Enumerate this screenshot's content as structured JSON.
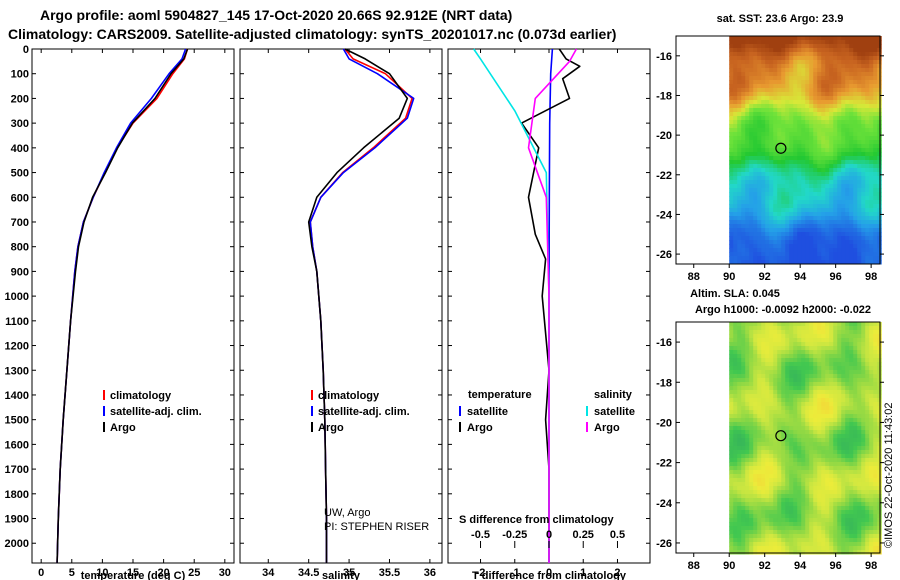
{
  "header": {
    "line1": "Argo profile: aoml 5904827_145 17-Oct-2020 20.66S 92.912E (NRT data)",
    "line2": "Climatology: CARS2009. Satellite-adjusted climatology: synTS_20201017.nc (0.073d earlier)"
  },
  "colors": {
    "climatology": "#ff0000",
    "satellite": "#0000ff",
    "argo": "#000000",
    "sal_satellite": "#00e5e5",
    "sal_argo": "#ff00ff"
  },
  "chart_data": [
    {
      "type": "line",
      "id": "temperature",
      "xlabel": "temperature (deg C)",
      "xlim": [
        -1.5,
        31.5
      ],
      "xticks": [
        "0",
        "5",
        "10",
        "15",
        "20",
        "25",
        "30"
      ],
      "xtick_values": [
        0,
        5,
        10,
        15,
        20,
        25,
        30
      ],
      "ylim": [
        2080,
        0
      ],
      "yticks": [
        "0",
        "100",
        "200",
        "300",
        "400",
        "500",
        "600",
        "700",
        "800",
        "900",
        "1000",
        "1100",
        "1200",
        "1300",
        "1400",
        "1500",
        "1600",
        "1700",
        "1800",
        "1900",
        "2000"
      ],
      "ytick_values": [
        0,
        100,
        200,
        300,
        400,
        500,
        600,
        700,
        800,
        900,
        1000,
        1100,
        1200,
        1300,
        1400,
        1500,
        1600,
        1700,
        1800,
        1900,
        2000
      ],
      "legend": [
        "climatology",
        "satellite-adj. clim.",
        "Argo"
      ],
      "series": [
        {
          "name": "climatology",
          "color": "#ff0000",
          "x": [
            23.9,
            23.4,
            21.5,
            18.9,
            15.0,
            12.4,
            10.4,
            8.5,
            6.9,
            6.0,
            5.5,
            4.8,
            4.2,
            3.6,
            3.1,
            2.8,
            2.6
          ],
          "y": [
            0,
            40,
            100,
            200,
            300,
            400,
            500,
            600,
            700,
            800,
            900,
            1100,
            1300,
            1500,
            1700,
            1900,
            2080
          ]
        },
        {
          "name": "satellite-adj. clim.",
          "color": "#0000ff",
          "x": [
            23.6,
            23.0,
            20.9,
            18.0,
            14.6,
            12.3,
            10.3,
            8.5,
            6.9,
            6.0,
            5.5,
            4.8,
            4.2,
            3.6,
            3.1,
            2.8,
            2.6
          ],
          "y": [
            0,
            40,
            100,
            200,
            300,
            400,
            500,
            600,
            700,
            800,
            900,
            1100,
            1300,
            1500,
            1700,
            1900,
            2080
          ]
        },
        {
          "name": "Argo",
          "color": "#000000",
          "x": [
            23.9,
            23.3,
            21.2,
            18.6,
            14.9,
            12.5,
            10.5,
            8.4,
            7.0,
            6.1,
            5.6,
            4.8,
            4.2,
            3.6,
            3.1,
            2.8,
            2.6
          ],
          "y": [
            0,
            40,
            100,
            200,
            300,
            400,
            500,
            600,
            700,
            800,
            900,
            1100,
            1300,
            1500,
            1700,
            1900,
            2080
          ]
        }
      ]
    },
    {
      "type": "line",
      "id": "salinity",
      "xlabel": "salinity",
      "xlim": [
        33.65,
        36.15
      ],
      "xticks": [
        "34",
        "34.5",
        "35",
        "35.5",
        "36"
      ],
      "xtick_values": [
        34,
        34.5,
        35,
        35.5,
        36
      ],
      "ylim": [
        2080,
        0
      ],
      "legend": [
        "climatology",
        "satellite-adj. clim.",
        "Argo"
      ],
      "annotation": [
        "UW, Argo",
        "PI: STEPHEN RISER"
      ],
      "series": [
        {
          "name": "climatology",
          "color": "#ff0000",
          "x": [
            34.95,
            35.05,
            35.45,
            35.78,
            35.7,
            35.3,
            34.92,
            34.65,
            34.52,
            34.55,
            34.6,
            34.65,
            34.68,
            34.7,
            34.71,
            34.72,
            34.72
          ],
          "y": [
            0,
            40,
            100,
            200,
            280,
            400,
            500,
            600,
            700,
            800,
            900,
            1100,
            1300,
            1500,
            1700,
            1900,
            2080
          ]
        },
        {
          "name": "satellite-adj. clim.",
          "color": "#0000ff",
          "x": [
            34.93,
            35.0,
            35.35,
            35.8,
            35.72,
            35.32,
            34.93,
            34.65,
            34.52,
            34.55,
            34.6,
            34.65,
            34.68,
            34.7,
            34.71,
            34.72,
            34.72
          ],
          "y": [
            0,
            40,
            100,
            200,
            280,
            400,
            500,
            600,
            700,
            800,
            900,
            1100,
            1300,
            1500,
            1700,
            1900,
            2080
          ]
        },
        {
          "name": "Argo",
          "color": "#000000",
          "x": [
            34.95,
            35.2,
            35.5,
            35.72,
            35.62,
            35.18,
            34.85,
            34.6,
            34.5,
            34.54,
            34.6,
            34.65,
            34.68,
            34.7,
            34.71,
            34.72,
            34.72
          ],
          "y": [
            0,
            40,
            100,
            200,
            280,
            400,
            500,
            600,
            700,
            800,
            900,
            1100,
            1300,
            1500,
            1700,
            1900,
            2080
          ]
        }
      ]
    },
    {
      "type": "line",
      "id": "differences",
      "xlabel": "T difference from climatology",
      "xlim": [
        -2.95,
        2.95
      ],
      "xticks": [
        "-2",
        "-1",
        "0",
        "1",
        "2"
      ],
      "xtick_values": [
        -2,
        -1,
        0,
        1,
        2
      ],
      "s_label": "S difference from climatology",
      "s_ticks": [
        "-0.5",
        "-0.25",
        "0",
        "0.25",
        "0.5"
      ],
      "s_tick_values": [
        -0.5,
        -0.25,
        0,
        0.25,
        0.5
      ],
      "s_scale": 4,
      "ylim": [
        2080,
        0
      ],
      "legend_left": {
        "title": "temperature",
        "items": [
          "satellite",
          "Argo"
        ]
      },
      "legend_right": {
        "title": "salinity",
        "items": [
          "satellite",
          "Argo"
        ]
      },
      "series": [
        {
          "name": "T satellite",
          "color": "#0000ff",
          "x": [
            0.1,
            0.05,
            0.02,
            0.01,
            0.0,
            0.0,
            0.0
          ],
          "y": [
            0,
            100,
            300,
            600,
            1000,
            1500,
            2080
          ]
        },
        {
          "name": "T Argo",
          "color": "#000000",
          "x": [
            0.3,
            0.5,
            0.9,
            0.4,
            0.6,
            -0.8,
            -0.3,
            -0.6,
            -0.4,
            -0.1,
            -0.2,
            0.0,
            -0.1,
            0.0,
            0.0,
            0.0
          ],
          "y": [
            0,
            40,
            70,
            120,
            200,
            300,
            400,
            600,
            750,
            850,
            1000,
            1300,
            1500,
            1700,
            1900,
            2080
          ]
        },
        {
          "name": "S satellite",
          "color": "#00e5e5",
          "x": [
            -0.55,
            -0.5,
            -0.25,
            -0.02,
            0.0,
            0.0
          ],
          "y": [
            0,
            40,
            250,
            500,
            1000,
            2080
          ]
        },
        {
          "name": "S Argo",
          "color": "#ff00ff",
          "x": [
            0.2,
            0.15,
            -0.1,
            -0.15,
            -0.02,
            0.0,
            0.0
          ],
          "y": [
            0,
            50,
            200,
            400,
            600,
            1000,
            2080
          ]
        }
      ]
    }
  ],
  "map_sst": {
    "title": "sat. SST: 23.6  Argo: 23.9",
    "lat_ticks": [
      "-16",
      "-18",
      "-20",
      "-22",
      "-24",
      "-26"
    ],
    "lat_values": [
      -16,
      -18,
      -20,
      -22,
      -24,
      -26
    ],
    "lon_ticks": [
      "88",
      "90",
      "92",
      "94",
      "96",
      "98"
    ],
    "lon_values": [
      88,
      90,
      92,
      94,
      96,
      98
    ],
    "lon_range": [
      87,
      98.5
    ],
    "lat_range": [
      -15,
      -26.5
    ],
    "float_lon": 92.912,
    "float_lat": -20.66
  },
  "map_sla": {
    "title1": "Altim. SLA: 0.045",
    "title2": "Argo h1000: -0.0092 h2000: -0.022",
    "lat_ticks": [
      "-16",
      "-18",
      "-20",
      "-22",
      "-24",
      "-26"
    ],
    "lat_values": [
      -16,
      -18,
      -20,
      -22,
      -24,
      -26
    ],
    "lon_ticks": [
      "88",
      "90",
      "92",
      "94",
      "96",
      "98"
    ],
    "lon_values": [
      88,
      90,
      92,
      94,
      96,
      98
    ],
    "lon_range": [
      87,
      98.5
    ],
    "lat_range": [
      -15,
      -26.5
    ],
    "float_lon": 92.912,
    "float_lat": -20.66
  },
  "credit": "©IMOS 22-Oct-2020 11:43:02"
}
